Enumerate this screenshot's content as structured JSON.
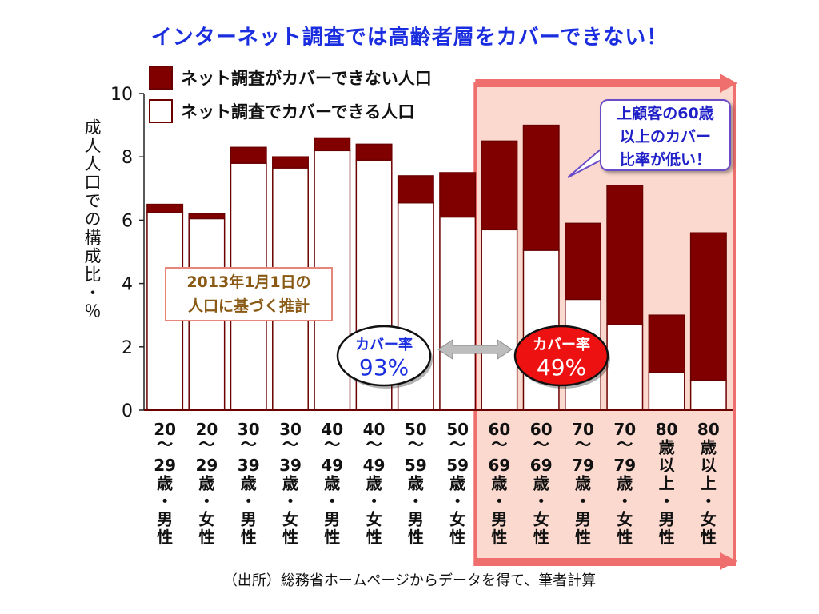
{
  "title": "インターネット調査では高齢者層をカバーできない！",
  "legend": [
    {
      "label": "ネット調査がカバーできない人口",
      "color": "#800000"
    },
    {
      "label": "ネット調査でカバーできる人口",
      "color": "#ffffff"
    }
  ],
  "source": "（出所）総務省ホームページからデータを得て、筆者計算",
  "callout": {
    "lines": [
      "上顧客の60歳",
      "以上のカバー",
      "比率が低い！"
    ]
  },
  "estimate_note": {
    "lines": [
      "2013年1月1日の",
      "人口に基づく推計"
    ]
  },
  "coverage": [
    {
      "label": "カバー率",
      "value": "93%"
    },
    {
      "label": "カバー率",
      "value": "49%"
    }
  ],
  "colors": {
    "uncovered": "#800000",
    "covered": "#ffffff",
    "bar_border": "#6b0000",
    "highlight_fill": "#fbd9cf",
    "highlight_border": "#ef6f6f",
    "title": "#1a2ee0",
    "bubble_red": "#ee1111"
  },
  "chart_data": {
    "type": "bar",
    "stacked": true,
    "ylabel": "成人人口での構成比・％",
    "ylim": [
      0,
      10
    ],
    "yticks": [
      0,
      2,
      4,
      6,
      8,
      10
    ],
    "categories": [
      "20〜29歳・男性",
      "20〜29歳・女性",
      "30〜39歳・男性",
      "30〜39歳・女性",
      "40〜49歳・男性",
      "40〜49歳・女性",
      "50〜59歳・男性",
      "50〜59歳・女性",
      "60〜69歳・男性",
      "60〜69歳・女性",
      "70〜79歳・男性",
      "70〜79歳・女性",
      "80歳以上・男性",
      "80歳以上・女性"
    ],
    "category_lines": [
      [
        "20",
        "〜",
        "29",
        "歳",
        "・",
        "男",
        "性"
      ],
      [
        "20",
        "〜",
        "29",
        "歳",
        "・",
        "女",
        "性"
      ],
      [
        "30",
        "〜",
        "39",
        "歳",
        "・",
        "男",
        "性"
      ],
      [
        "30",
        "〜",
        "39",
        "歳",
        "・",
        "女",
        "性"
      ],
      [
        "40",
        "〜",
        "49",
        "歳",
        "・",
        "男",
        "性"
      ],
      [
        "40",
        "〜",
        "49",
        "歳",
        "・",
        "女",
        "性"
      ],
      [
        "50",
        "〜",
        "59",
        "歳",
        "・",
        "男",
        "性"
      ],
      [
        "50",
        "〜",
        "59",
        "歳",
        "・",
        "女",
        "性"
      ],
      [
        "60",
        "〜",
        "69",
        "歳",
        "・",
        "男",
        "性"
      ],
      [
        "60",
        "〜",
        "69",
        "歳",
        "・",
        "女",
        "性"
      ],
      [
        "70",
        "〜",
        "79",
        "歳",
        "・",
        "男",
        "性"
      ],
      [
        "70",
        "〜",
        "79",
        "歳",
        "・",
        "女",
        "性"
      ],
      [
        "80",
        "歳",
        "以",
        "上",
        "・",
        "男",
        "性"
      ],
      [
        "80",
        "歳",
        "以",
        "上",
        "・",
        "女",
        "性"
      ]
    ],
    "series": [
      {
        "name": "ネット調査でカバーできる人口",
        "values": [
          6.25,
          6.05,
          7.8,
          7.65,
          8.2,
          7.9,
          6.55,
          6.1,
          5.7,
          5.05,
          3.5,
          2.7,
          1.2,
          0.95
        ]
      },
      {
        "name": "ネット調査がカバーできない人口",
        "values": [
          0.25,
          0.15,
          0.5,
          0.35,
          0.4,
          0.5,
          0.85,
          1.4,
          2.8,
          3.95,
          2.4,
          4.4,
          1.8,
          4.65
        ]
      }
    ],
    "highlight_from_category": 8
  }
}
